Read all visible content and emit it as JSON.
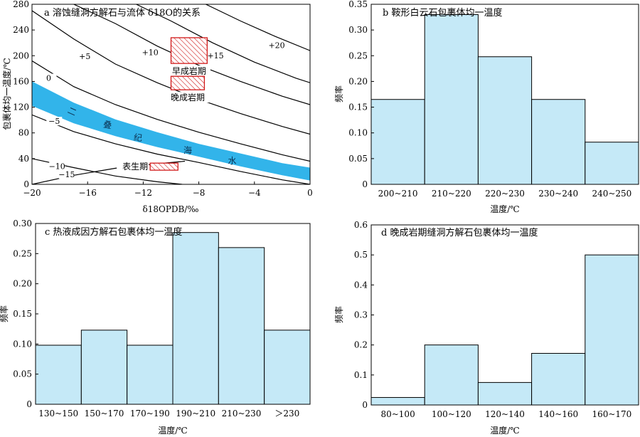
{
  "chart_data": [
    {
      "type": "line",
      "title": "a 溶蚀缝洞方解石与流体 δ18O的关系",
      "xlabel": "δ18OPDB/‰",
      "ylabel": "包裹体均一温度/℃",
      "xlim": [
        -20,
        0
      ],
      "ylim": [
        0,
        280
      ],
      "xticks": [
        "−20",
        "−16",
        "−12",
        "−8",
        "−4",
        "0"
      ],
      "yticks": [
        "0",
        "40",
        "80",
        "120",
        "160",
        "200",
        "240",
        "280"
      ],
      "contours": [
        {
          "label": "−15",
          "points": [
            [
              -20,
              0
            ],
            [
              -17,
              14
            ],
            [
              -14,
              25
            ],
            [
              -11,
              32
            ],
            [
              -9,
              36
            ]
          ]
        },
        {
          "label": "−10",
          "points": [
            [
              -20,
              40
            ],
            [
              -17,
              26
            ],
            [
              -14,
              13
            ],
            [
              -11,
              4
            ],
            [
              -9.2,
              0
            ]
          ]
        },
        {
          "label": "−5",
          "points": [
            [
              -20,
              108
            ],
            [
              -17,
              82
            ],
            [
              -14,
              63
            ],
            [
              -11,
              47
            ],
            [
              -8,
              34
            ],
            [
              -5,
              20
            ],
            [
              -2,
              7
            ],
            [
              0,
              0
            ]
          ]
        },
        {
          "label": "0",
          "points": [
            [
              -20,
              192
            ],
            [
              -17,
              152
            ],
            [
              -14,
              124
            ],
            [
              -11,
              101
            ],
            [
              -8,
              81
            ],
            [
              -5,
              63
            ],
            [
              -2,
              46
            ],
            [
              0,
              36
            ]
          ]
        },
        {
          "label": "+5",
          "points": [
            [
              -20,
              270
            ],
            [
              -17,
              226
            ],
            [
              -14,
              187
            ],
            [
              -11,
              158
            ],
            [
              -8,
              132
            ],
            [
              -5,
              110
            ],
            [
              -2,
              90
            ],
            [
              0,
              78
            ]
          ]
        },
        {
          "label": "+10",
          "points": [
            [
              -17,
              280
            ],
            [
              -14,
              250
            ],
            [
              -11,
              215
            ],
            [
              -8,
              185
            ],
            [
              -5,
              160
            ],
            [
              -2,
              137
            ],
            [
              0,
              124
            ]
          ]
        },
        {
          "label": "+15",
          "points": [
            [
              -12.5,
              280
            ],
            [
              -10,
              254
            ],
            [
              -7,
              220
            ],
            [
              -4,
              190
            ],
            [
              -1,
              165
            ],
            [
              0,
              158
            ]
          ]
        },
        {
          "label": "+20",
          "points": [
            [
              -7.5,
              280
            ],
            [
              -5,
              254
            ],
            [
              -2.5,
              230
            ],
            [
              0,
              208
            ]
          ]
        }
      ],
      "seawater_band": {
        "label": [
          "二",
          "叠",
          "纪",
          "海",
          "水"
        ],
        "upper": [
          [
            -20,
            160
          ],
          [
            -17,
            127
          ],
          [
            -14,
            101
          ],
          [
            -11,
            81
          ],
          [
            -8,
            63
          ],
          [
            -5,
            48
          ],
          [
            -2,
            33
          ],
          [
            0,
            26
          ]
        ],
        "lower": [
          [
            -20,
            122
          ],
          [
            -17,
            95
          ],
          [
            -14,
            75
          ],
          [
            -11,
            58
          ],
          [
            -8,
            43
          ],
          [
            -5,
            28
          ],
          [
            -2,
            14
          ],
          [
            0,
            6
          ]
        ]
      },
      "stages": [
        {
          "label": "早成岩期",
          "x": [
            -10,
            -7.4
          ],
          "y": [
            188,
            228
          ]
        },
        {
          "label": "晚成岩期",
          "x": [
            -10,
            -7.6
          ],
          "y": [
            147,
            168
          ]
        },
        {
          "label": "表生期",
          "x": [
            -11.5,
            -9.5
          ],
          "y": [
            22,
            33
          ]
        }
      ]
    },
    {
      "type": "bar",
      "title": "b 鞍形白云石包裹体均一温度",
      "xlabel": "温度/℃",
      "ylabel": "频率",
      "categories": [
        "200~210",
        "210~220",
        "220~230",
        "230~240",
        "240~250"
      ],
      "values": [
        0.165,
        0.33,
        0.248,
        0.165,
        0.082
      ],
      "ylim": [
        0,
        0.35
      ],
      "yticks": [
        "0",
        "0.05",
        "0.10",
        "0.15",
        "0.20",
        "0.25",
        "0.30",
        "0.35"
      ]
    },
    {
      "type": "bar",
      "title": "c 热液成因方解石包裹体均一温度",
      "xlabel": "温度/℃",
      "ylabel": "频率",
      "categories": [
        "130~150",
        "150~170",
        "170~190",
        "190~210",
        "210~230",
        "＞230"
      ],
      "values": [
        0.098,
        0.123,
        0.098,
        0.285,
        0.26,
        0.123
      ],
      "ylim": [
        0,
        0.3
      ],
      "yticks": [
        "0",
        "0.05",
        "0.10",
        "0.15",
        "0.20",
        "0.25",
        "0.30"
      ]
    },
    {
      "type": "bar",
      "title": "d 晚成岩期缝洞方解石包裹体均一温度",
      "xlabel": "温度/℃",
      "ylabel": "频率",
      "categories": [
        "80~100",
        "100~120",
        "120~140",
        "140~160",
        "160~170"
      ],
      "values": [
        0.025,
        0.2,
        0.075,
        0.172,
        0.5
      ],
      "ylim": [
        0,
        0.6
      ],
      "yticks": [
        "0",
        "0.1",
        "0.2",
        "0.3",
        "0.4",
        "0.5",
        "0.6"
      ]
    }
  ]
}
